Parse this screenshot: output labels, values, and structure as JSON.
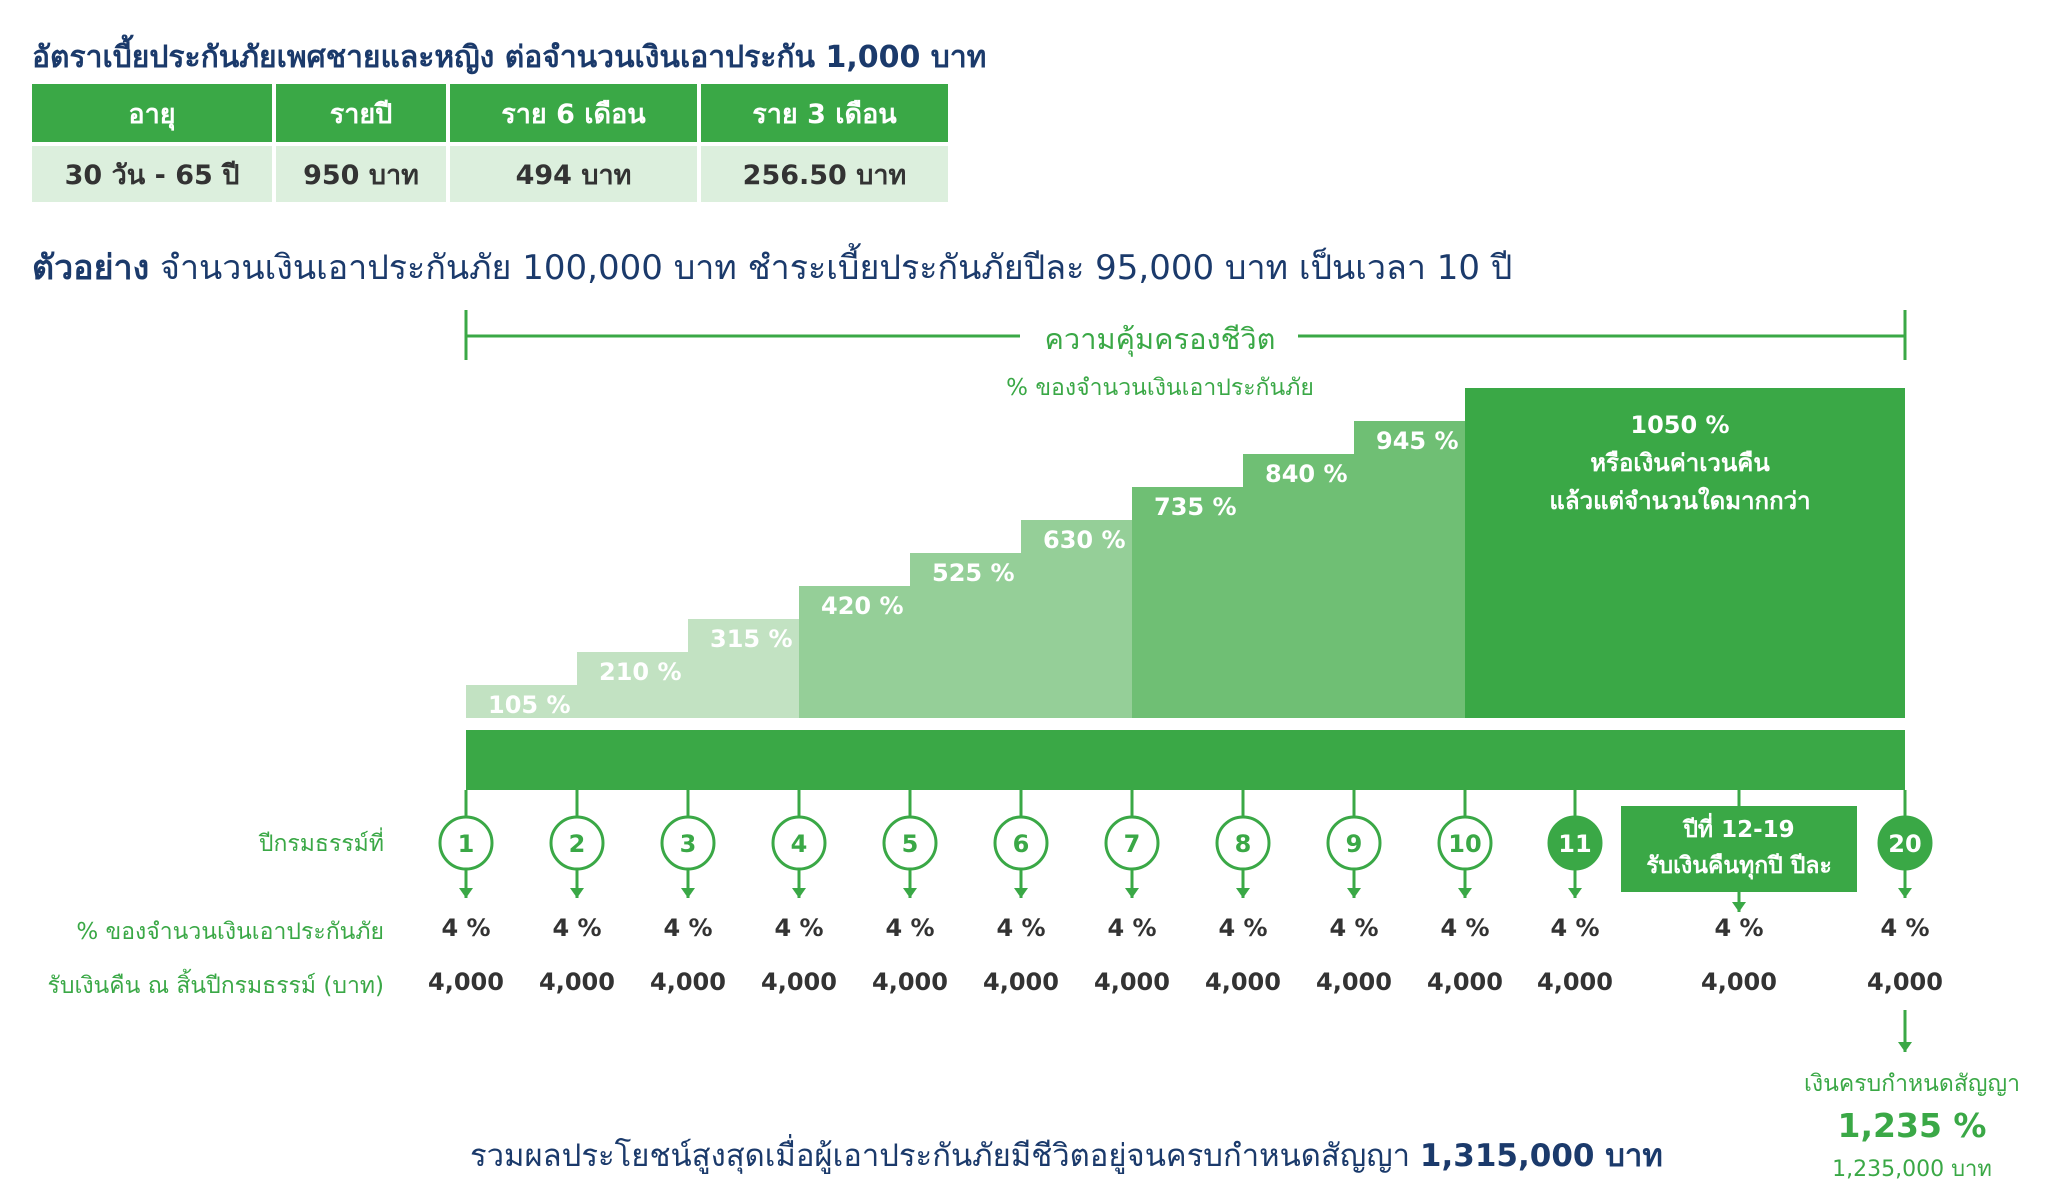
{
  "rate_title": "อัตราเบี้ยประกันภัยเพศชายและหญิง ต่อจำนวนเงินเอาประกัน 1,000 บาท",
  "rate_table": {
    "headers": [
      "อายุ",
      "รายปี",
      "ราย 6 เดือน",
      "ราย 3 เดือน"
    ],
    "row": [
      "30 วัน - 65 ปี",
      "950 บาท",
      "494 บาท",
      "256.50 บาท"
    ]
  },
  "example": {
    "bold": "ตัวอย่าง",
    "text": " จำนวนเงินเอาประกันภัย 100,000 บาท ชำระเบี้ยประกันภัยปีละ 95,000 บาท เป็นเวลา 10 ปี"
  },
  "coverage": {
    "label": "ความคุ้มครองชีวิต",
    "sublabel": "% ของจำนวนเงินเอาประกันภัย",
    "steps": [
      "105 %",
      "210 %",
      "315 %",
      "420 %",
      "525 %",
      "630 %",
      "735 %",
      "840 %",
      "945 %"
    ],
    "step_values": [
      105,
      210,
      315,
      420,
      525,
      630,
      735,
      840,
      945
    ],
    "final_value": 1050,
    "final_lines": [
      "1050 %",
      "หรือเงินค่าเวนคืน",
      "แล้วแต่จำนวนใดมากกว่า"
    ]
  },
  "row_labels": {
    "years": "ปีกรมธรรม์ที่",
    "percent": "% ของจำนวนเงินเอาประกันภัย",
    "cashback": "รับเงินคืน ณ สิ้นปีกรมธรรม์ (บาท)"
  },
  "years": [
    "1",
    "2",
    "3",
    "4",
    "5",
    "6",
    "7",
    "8",
    "9",
    "10",
    "11"
  ],
  "year_12_19": [
    "ปีที่ 12-19",
    "รับเงินคืนทุกปี ปีละ"
  ],
  "year_20": "20",
  "percent_each": "4 %",
  "cashback_each": "4,000",
  "maturity": {
    "label": "เงินครบกำหนดสัญญา",
    "percent": "1,235 %",
    "amount": "1,235,000 บาท"
  },
  "total": {
    "text": "รวมผลประโยชน์สูงสุดเมื่อผู้เอาประกันภัยมีชีวิตอยู่จนครบกำหนดสัญญา ",
    "amount": "1,315,000 บาท"
  },
  "colors": {
    "green": "#3aa846",
    "navy": "#1b3a6b",
    "step_shades": [
      "#c2e2c2",
      "#95cf98",
      "#6fbf74",
      "#3aa846"
    ]
  }
}
